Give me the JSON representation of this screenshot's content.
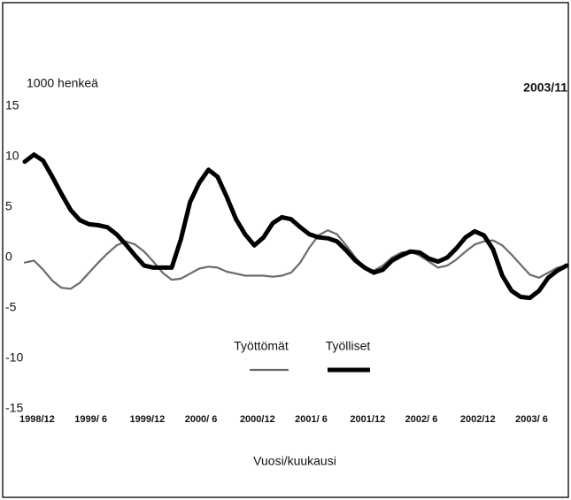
{
  "chart_data": {
    "type": "line",
    "y_label": "1000 henkeä",
    "annotation": "2003/11",
    "x_label": "Vuosi/kuukausi",
    "categories": [
      "1998/12",
      null,
      null,
      null,
      null,
      null,
      "1999/ 6",
      null,
      null,
      null,
      null,
      null,
      "1999/12",
      null,
      null,
      null,
      null,
      null,
      "2000/ 6",
      null,
      null,
      null,
      null,
      null,
      "2000/12",
      null,
      null,
      null,
      null,
      null,
      "2001/ 6",
      null,
      null,
      null,
      null,
      null,
      "2001/12",
      null,
      null,
      null,
      null,
      null,
      "2002/ 6",
      null,
      null,
      null,
      null,
      null,
      "2002/12",
      null,
      null,
      null,
      null,
      null,
      "2003/ 6",
      null,
      null,
      null,
      null,
      null
    ],
    "series": [
      {
        "name": "Työttömät",
        "color": "#6b6b6b",
        "width": 2.2,
        "values": [
          -0.5,
          -0.3,
          -1.2,
          -2.3,
          -3.0,
          -3.1,
          -2.5,
          -1.5,
          -0.5,
          0.4,
          1.2,
          1.6,
          1.3,
          0.6,
          -0.4,
          -1.5,
          -2.2,
          -2.1,
          -1.6,
          -1.1,
          -0.9,
          -1.0,
          -1.4,
          -1.6,
          -1.8,
          -1.8,
          -1.8,
          -1.9,
          -1.8,
          -1.5,
          -0.5,
          1.0,
          2.2,
          2.7,
          2.3,
          1.2,
          0.0,
          -1.0,
          -1.3,
          -0.8,
          0.0,
          0.5,
          0.6,
          0.2,
          -0.4,
          -1.0,
          -0.8,
          -0.2,
          0.6,
          1.3,
          1.6,
          1.7,
          1.2,
          0.3,
          -0.7,
          -1.7,
          -2.0,
          -1.5,
          -1.0,
          -0.8
        ]
      },
      {
        "name": "Työlliset",
        "color": "#000000",
        "width": 5,
        "values": [
          9.5,
          10.2,
          9.6,
          8.0,
          6.3,
          4.7,
          3.7,
          3.3,
          3.2,
          3.0,
          2.3,
          1.3,
          0.2,
          -0.8,
          -1.0,
          -1.0,
          -1.0,
          1.8,
          5.5,
          7.4,
          8.7,
          8.0,
          6.0,
          3.8,
          2.3,
          1.2,
          2.0,
          3.4,
          4.0,
          3.8,
          3.0,
          2.3,
          2.0,
          1.9,
          1.6,
          0.7,
          -0.3,
          -1.0,
          -1.5,
          -1.2,
          -0.3,
          0.2,
          0.6,
          0.5,
          -0.1,
          -0.4,
          0.0,
          0.9,
          2.0,
          2.6,
          2.2,
          0.8,
          -1.8,
          -3.3,
          -3.9,
          -4.0,
          -3.3,
          -2.0,
          -1.3,
          -0.8
        ]
      }
    ],
    "ylim": [
      -15,
      15
    ],
    "yticks": [
      15,
      10,
      5,
      0,
      -5,
      -10,
      -15
    ],
    "grid": false
  }
}
